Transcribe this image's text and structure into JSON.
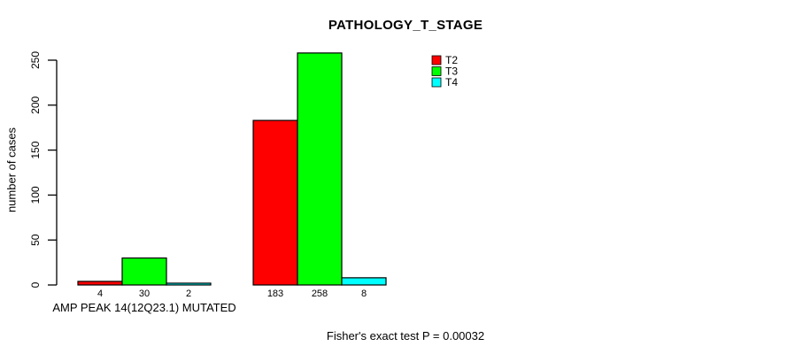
{
  "chart_data": {
    "type": "bar",
    "title": "PATHOLOGY_T_STAGE",
    "ylabel": "number of cases",
    "xlabel": "AMP PEAK 14(12Q23.1) MUTATED",
    "footer": "Fisher's exact test P = 0.00032",
    "ylim": [
      0,
      250
    ],
    "yticks": [
      0,
      50,
      100,
      150,
      200,
      250
    ],
    "categories": [
      "AMP PEAK 14(12Q23.1) MUTATED",
      ""
    ],
    "series": [
      {
        "name": "T2",
        "color": "#ff0000",
        "values": [
          4,
          183
        ]
      },
      {
        "name": "T3",
        "color": "#00ff00",
        "values": [
          30,
          258
        ]
      },
      {
        "name": "T4",
        "color": "#00ffff",
        "values": [
          2,
          8
        ]
      }
    ],
    "bar_value_labels": [
      [
        4,
        30,
        2
      ],
      [
        183,
        258,
        8
      ]
    ],
    "legend_position": "top-right",
    "bar_border_color": "#000000",
    "axis_color": "#000000",
    "background": "#ffffff",
    "grid": false
  }
}
